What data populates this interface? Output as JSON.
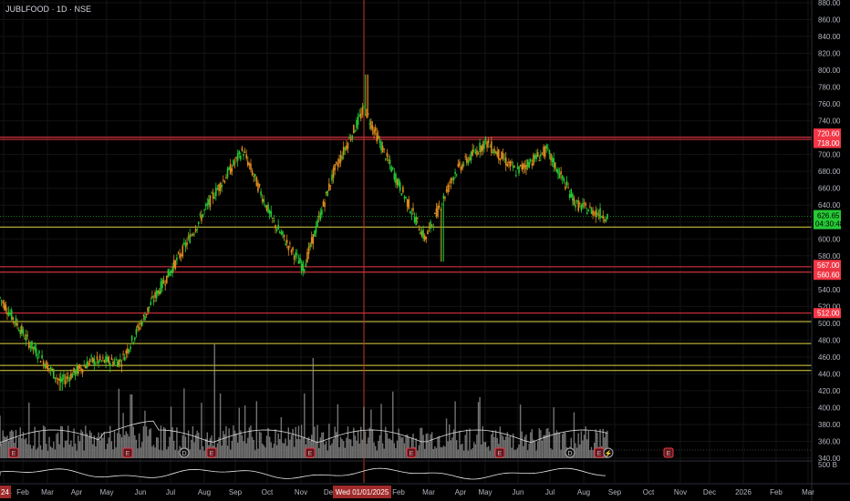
{
  "header": {
    "title": "JUBLFOOD · 1D · NSE"
  },
  "price_axis": {
    "ticks": [
      "880.00",
      "860.00",
      "840.00",
      "820.00",
      "800.00",
      "780.00",
      "760.00",
      "740.00",
      "720.00",
      "700.00",
      "680.00",
      "660.00",
      "640.00",
      "620.00",
      "600.00",
      "580.00",
      "560.00",
      "540.00",
      "520.00",
      "500.00",
      "480.00",
      "460.00",
      "440.00",
      "420.00",
      "400.00",
      "380.00",
      "360.00",
      "340.00"
    ],
    "volume_label": "500 B"
  },
  "time_axis": {
    "ticks": [
      "24",
      "Feb",
      "Mar",
      "Apr",
      "May",
      "Jun",
      "Jul",
      "Aug",
      "Sep",
      "Oct",
      "Nov",
      "Dec",
      "Feb",
      "Mar",
      "Apr",
      "May",
      "Jun",
      "Jul",
      "Aug",
      "Sep",
      "Oct",
      "Nov",
      "Dec",
      "2026",
      "Feb",
      "Mar"
    ],
    "crosshair_label": "Wed 01/01/2025"
  },
  "levels": [
    {
      "label": "720.60",
      "price": 720.6,
      "color": "#f23645",
      "tag": true
    },
    {
      "label": "718.00",
      "price": 718.0,
      "color": "#f23645",
      "tag": true
    },
    {
      "label": "",
      "price": 614,
      "color": "#e0d342",
      "tag": false
    },
    {
      "label": "567.00",
      "price": 567.0,
      "color": "#f23645",
      "tag": true
    },
    {
      "label": "560.60",
      "price": 560.6,
      "color": "#f23645",
      "tag": true
    },
    {
      "label": "512.00",
      "price": 512.0,
      "color": "#f23645",
      "tag": true
    },
    {
      "label": "",
      "price": 502,
      "color": "#e0d342",
      "tag": false
    },
    {
      "label": "",
      "price": 476,
      "color": "#e0d342",
      "tag": false
    },
    {
      "label": "",
      "price": 450,
      "color": "#e0d342",
      "tag": false
    },
    {
      "label": "",
      "price": 444,
      "color": "#e0d342",
      "tag": false
    }
  ],
  "current_price": {
    "value": "626.65",
    "countdown": "04:30:48",
    "color": "#1fd24f"
  },
  "colors": {
    "up": "#26c936",
    "down": "#e08a1e",
    "grid": "#131313",
    "axis_text": "#b2b5be",
    "crosshair": "#c0392b"
  },
  "event_markers": [
    "E",
    "E",
    "D",
    "E",
    "E",
    "E",
    "E",
    "D",
    "E",
    "flash-icon",
    "E"
  ],
  "chart_data": {
    "type": "candlestick",
    "title": "JUBLFOOD · 1D · NSE",
    "ylim": [
      340,
      880
    ],
    "x_range": [
      "Jan 2024",
      "Mar 2026"
    ],
    "close_path": [
      {
        "month": "Jan 2024",
        "close": 530
      },
      {
        "month": "Feb 2024",
        "close": 475
      },
      {
        "month": "Mar 2024",
        "close": 430
      },
      {
        "month": "Apr 2024",
        "close": 455
      },
      {
        "month": "May 2024",
        "close": 455
      },
      {
        "month": "Jun 2024",
        "close": 525
      },
      {
        "month": "Jul 2024",
        "close": 585
      },
      {
        "month": "Aug 2024",
        "close": 650
      },
      {
        "month": "Sep 2024",
        "close": 705
      },
      {
        "month": "Oct 2024",
        "close": 620
      },
      {
        "month": "Nov 2024",
        "close": 565
      },
      {
        "month": "Dec 2024",
        "close": 680
      },
      {
        "month": "Jan 2025",
        "close": 755
      },
      {
        "month": "Feb 2025",
        "close": 675
      },
      {
        "month": "Mar 2025",
        "close": 600
      },
      {
        "month": "Apr 2025",
        "close": 680
      },
      {
        "month": "May 2025",
        "close": 715
      },
      {
        "month": "Jun 2025",
        "close": 680
      },
      {
        "month": "Jul 2025",
        "close": 705
      },
      {
        "month": "Aug 2025",
        "close": 640
      },
      {
        "month": "Sep 2025",
        "close": 626.65
      }
    ],
    "last_close": 626.65,
    "resistance_levels": [
      720.6,
      718.0,
      567.0,
      560.6,
      512.0
    ],
    "support_levels": [
      614,
      502,
      476,
      450,
      444
    ]
  }
}
